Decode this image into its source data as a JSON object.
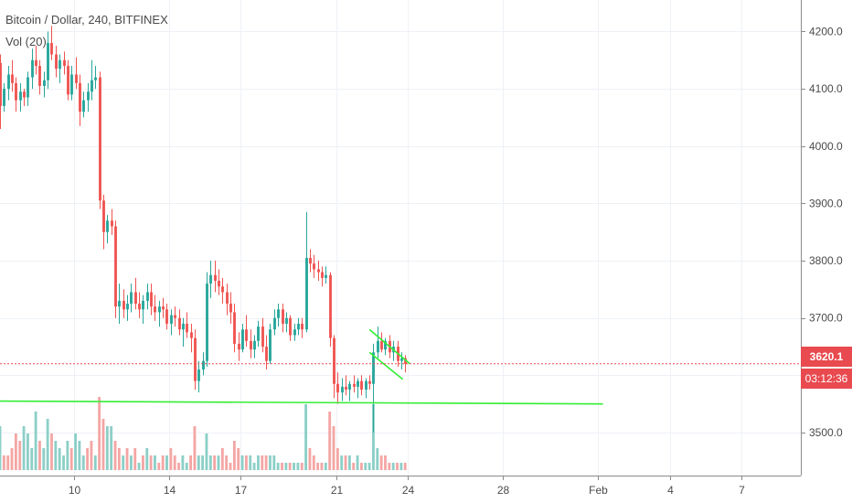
{
  "legend": {
    "title": "Bitcoin / Dollar, 240, BITFINEX",
    "volume": "Vol (20)"
  },
  "last_price": {
    "label": "3620.1",
    "value": 3620.1,
    "countdown": "03:12:36"
  },
  "colors": {
    "up": "#26a69a",
    "down": "#ef5350",
    "vol_up": "#8ccfc7",
    "vol_down": "#f4a6a4",
    "drawing": "#33ee33",
    "price_line": "#e84a4f",
    "grid": "#eef1f6",
    "axis_text": "#4a4a4a"
  },
  "chart_data": {
    "type": "candlestick",
    "title": "Bitcoin / Dollar, 240, BITFINEX",
    "y_axis": {
      "ticks": [
        3500,
        3600,
        3700,
        3800,
        3900,
        4000,
        4100,
        4200
      ],
      "tick_labels": [
        "3500.0",
        "3700.0",
        "3800.0",
        "3900.0",
        "4000.0",
        "4100.0",
        "4200.0"
      ],
      "range": [
        3425,
        4255
      ]
    },
    "x_axis": {
      "tick_labels": [
        "10",
        "14",
        "17",
        "21",
        "24",
        "28",
        "Feb",
        "4",
        "7"
      ],
      "tick_days": [
        10,
        14,
        17,
        21,
        24,
        28,
        32,
        35,
        38
      ],
      "range_days": [
        6.9,
        40.5
      ],
      "unit": "day of January (4h bars)"
    },
    "ohlc": [
      [
        4120,
        4150,
        4105,
        4130
      ],
      [
        4130,
        4175,
        4080,
        4160
      ],
      [
        4160,
        4195,
        4140,
        4145
      ],
      [
        4145,
        4160,
        4030,
        4070
      ],
      [
        4070,
        4110,
        4060,
        4100
      ],
      [
        4100,
        4140,
        4080,
        4125
      ],
      [
        4125,
        4150,
        4095,
        4110
      ],
      [
        4110,
        4120,
        4060,
        4080
      ],
      [
        4080,
        4110,
        4060,
        4095
      ],
      [
        4095,
        4100,
        4070,
        4085
      ],
      [
        4085,
        4130,
        4070,
        4120
      ],
      [
        4120,
        4170,
        4100,
        4150
      ],
      [
        4150,
        4175,
        4125,
        4140
      ],
      [
        4140,
        4150,
        4090,
        4105
      ],
      [
        4105,
        4130,
        4085,
        4115
      ],
      [
        4115,
        4200,
        4100,
        4180
      ],
      [
        4180,
        4210,
        4150,
        4160
      ],
      [
        4160,
        4175,
        4120,
        4135
      ],
      [
        4135,
        4160,
        4110,
        4150
      ],
      [
        4150,
        4165,
        4125,
        4140
      ],
      [
        4140,
        4150,
        4080,
        4090
      ],
      [
        4090,
        4140,
        4080,
        4125
      ],
      [
        4125,
        4155,
        4100,
        4110
      ],
      [
        4110,
        4125,
        4035,
        4060
      ],
      [
        4060,
        4095,
        4050,
        4080
      ],
      [
        4080,
        4110,
        4060,
        4095
      ],
      [
        4095,
        4150,
        4080,
        4115
      ],
      [
        4115,
        4140,
        4100,
        4120
      ],
      [
        4120,
        4130,
        3890,
        3905
      ],
      [
        3905,
        3915,
        3820,
        3850
      ],
      [
        3850,
        3880,
        3830,
        3870
      ],
      [
        3870,
        3890,
        3845,
        3860
      ],
      [
        3860,
        3870,
        3700,
        3720
      ],
      [
        3720,
        3760,
        3690,
        3730
      ],
      [
        3730,
        3750,
        3700,
        3715
      ],
      [
        3715,
        3740,
        3695,
        3725
      ],
      [
        3725,
        3760,
        3710,
        3745
      ],
      [
        3745,
        3770,
        3715,
        3725
      ],
      [
        3725,
        3745,
        3700,
        3715
      ],
      [
        3715,
        3740,
        3690,
        3730
      ],
      [
        3730,
        3760,
        3715,
        3745
      ],
      [
        3745,
        3760,
        3705,
        3720
      ],
      [
        3720,
        3740,
        3695,
        3710
      ],
      [
        3710,
        3730,
        3685,
        3720
      ],
      [
        3720,
        3735,
        3700,
        3715
      ],
      [
        3715,
        3725,
        3680,
        3690
      ],
      [
        3690,
        3715,
        3670,
        3705
      ],
      [
        3705,
        3720,
        3685,
        3700
      ],
      [
        3700,
        3715,
        3670,
        3680
      ],
      [
        3680,
        3700,
        3650,
        3690
      ],
      [
        3690,
        3710,
        3665,
        3675
      ],
      [
        3675,
        3690,
        3640,
        3665
      ],
      [
        3665,
        3680,
        3575,
        3590
      ],
      [
        3590,
        3625,
        3570,
        3610
      ],
      [
        3610,
        3640,
        3600,
        3625
      ],
      [
        3625,
        3780,
        3615,
        3760
      ],
      [
        3760,
        3800,
        3735,
        3775
      ],
      [
        3775,
        3800,
        3745,
        3765
      ],
      [
        3765,
        3785,
        3740,
        3755
      ],
      [
        3755,
        3770,
        3725,
        3745
      ],
      [
        3745,
        3760,
        3705,
        3725
      ],
      [
        3725,
        3745,
        3690,
        3710
      ],
      [
        3710,
        3725,
        3640,
        3655
      ],
      [
        3655,
        3675,
        3625,
        3645
      ],
      [
        3645,
        3690,
        3640,
        3680
      ],
      [
        3680,
        3705,
        3650,
        3660
      ],
      [
        3660,
        3680,
        3630,
        3645
      ],
      [
        3645,
        3670,
        3630,
        3660
      ],
      [
        3660,
        3695,
        3650,
        3685
      ],
      [
        3685,
        3700,
        3640,
        3650
      ],
      [
        3650,
        3670,
        3610,
        3625
      ],
      [
        3625,
        3690,
        3620,
        3680
      ],
      [
        3680,
        3715,
        3670,
        3700
      ],
      [
        3700,
        3725,
        3685,
        3715
      ],
      [
        3715,
        3725,
        3675,
        3690
      ],
      [
        3690,
        3710,
        3675,
        3700
      ],
      [
        3700,
        3705,
        3660,
        3670
      ],
      [
        3670,
        3690,
        3660,
        3680
      ],
      [
        3680,
        3700,
        3670,
        3690
      ],
      [
        3690,
        3700,
        3665,
        3680
      ],
      [
        3680,
        3885,
        3675,
        3805
      ],
      [
        3805,
        3820,
        3780,
        3795
      ],
      [
        3795,
        3810,
        3770,
        3785
      ],
      [
        3785,
        3800,
        3765,
        3780
      ],
      [
        3780,
        3790,
        3755,
        3770
      ],
      [
        3770,
        3790,
        3760,
        3775
      ],
      [
        3775,
        3780,
        3650,
        3665
      ],
      [
        3665,
        3670,
        3560,
        3585
      ],
      [
        3585,
        3605,
        3550,
        3570
      ],
      [
        3570,
        3595,
        3555,
        3580
      ],
      [
        3580,
        3600,
        3565,
        3575
      ],
      [
        3575,
        3590,
        3555,
        3585
      ],
      [
        3585,
        3600,
        3570,
        3580
      ],
      [
        3580,
        3595,
        3560,
        3590
      ],
      [
        3590,
        3600,
        3565,
        3575
      ],
      [
        3575,
        3595,
        3560,
        3590
      ],
      [
        3590,
        3600,
        3575,
        3585
      ],
      [
        3585,
        3655,
        3500,
        3640
      ],
      [
        3640,
        3685,
        3630,
        3660
      ],
      [
        3660,
        3675,
        3640,
        3645
      ],
      [
        3645,
        3665,
        3635,
        3660
      ],
      [
        3660,
        3670,
        3630,
        3640
      ],
      [
        3640,
        3660,
        3625,
        3650
      ],
      [
        3650,
        3660,
        3615,
        3625
      ],
      [
        3625,
        3640,
        3610,
        3630
      ],
      [
        3630,
        3635,
        3605,
        3620
      ]
    ],
    "volume_bars": [
      [
        4,
        1
      ],
      [
        2,
        0
      ],
      [
        3,
        0
      ],
      [
        6,
        1
      ],
      [
        2,
        0
      ],
      [
        2,
        0
      ],
      [
        3,
        0
      ],
      [
        5,
        0
      ],
      [
        4,
        0
      ],
      [
        6,
        1
      ],
      [
        5,
        1
      ],
      [
        3,
        1
      ],
      [
        8,
        1
      ],
      [
        4,
        0
      ],
      [
        3,
        1
      ],
      [
        7,
        1
      ],
      [
        5,
        0
      ],
      [
        4,
        1
      ],
      [
        3,
        1
      ],
      [
        2,
        1
      ],
      [
        4,
        1
      ],
      [
        3,
        0
      ],
      [
        5,
        1
      ],
      [
        4,
        1
      ],
      [
        2,
        1
      ],
      [
        3,
        0
      ],
      [
        4,
        0
      ],
      [
        2,
        1
      ],
      [
        10,
        0
      ],
      [
        7,
        0
      ],
      [
        6,
        1
      ],
      [
        6,
        1
      ],
      [
        4,
        0
      ],
      [
        3,
        0
      ],
      [
        2,
        1
      ],
      [
        3,
        0
      ],
      [
        2,
        1
      ],
      [
        3,
        0
      ],
      [
        1,
        1
      ],
      [
        2,
        0
      ],
      [
        3,
        1
      ],
      [
        2,
        0
      ],
      [
        2,
        1
      ],
      [
        1,
        0
      ],
      [
        2,
        0
      ],
      [
        2,
        1
      ],
      [
        3,
        0
      ],
      [
        2,
        0
      ],
      [
        1,
        0
      ],
      [
        2,
        1
      ],
      [
        1,
        1
      ],
      [
        2,
        0
      ],
      [
        6,
        0
      ],
      [
        2,
        1
      ],
      [
        2,
        1
      ],
      [
        5,
        1
      ],
      [
        2,
        1
      ],
      [
        2,
        0
      ],
      [
        2,
        1
      ],
      [
        3,
        0
      ],
      [
        2,
        0
      ],
      [
        1,
        0
      ],
      [
        4,
        0
      ],
      [
        3,
        0
      ],
      [
        2,
        1
      ],
      [
        2,
        0
      ],
      [
        2,
        1
      ],
      [
        1,
        1
      ],
      [
        2,
        1
      ],
      [
        2,
        0
      ],
      [
        2,
        0
      ],
      [
        2,
        1
      ],
      [
        2,
        1
      ],
      [
        1,
        1
      ],
      [
        1,
        0
      ],
      [
        1,
        1
      ],
      [
        1,
        0
      ],
      [
        1,
        1
      ],
      [
        1,
        1
      ],
      [
        1,
        0
      ],
      [
        9,
        1
      ],
      [
        3,
        0
      ],
      [
        2,
        0
      ],
      [
        1,
        0
      ],
      [
        1,
        0
      ],
      [
        1,
        1
      ],
      [
        8,
        0
      ],
      [
        6,
        0
      ],
      [
        3,
        0
      ],
      [
        2,
        1
      ],
      [
        2,
        0
      ],
      [
        2,
        1
      ],
      [
        1,
        0
      ],
      [
        2,
        1
      ],
      [
        1,
        0
      ],
      [
        1,
        1
      ],
      [
        1,
        1
      ],
      [
        9,
        1
      ],
      [
        3,
        1
      ],
      [
        2,
        0
      ],
      [
        2,
        0
      ],
      [
        1,
        0
      ],
      [
        1,
        1
      ],
      [
        1,
        0
      ],
      [
        1,
        1
      ],
      [
        1,
        0
      ]
    ],
    "drawings": {
      "support_line": {
        "from": [
          6.9,
          3555
        ],
        "to": [
          32.2,
          3550
        ]
      },
      "flag_upper": {
        "from": [
          22.4,
          3680
        ],
        "to": [
          24.1,
          3620
        ]
      },
      "flag_lower": {
        "from": [
          22.4,
          3640
        ],
        "to": [
          23.8,
          3593
        ]
      }
    },
    "grid": true
  }
}
